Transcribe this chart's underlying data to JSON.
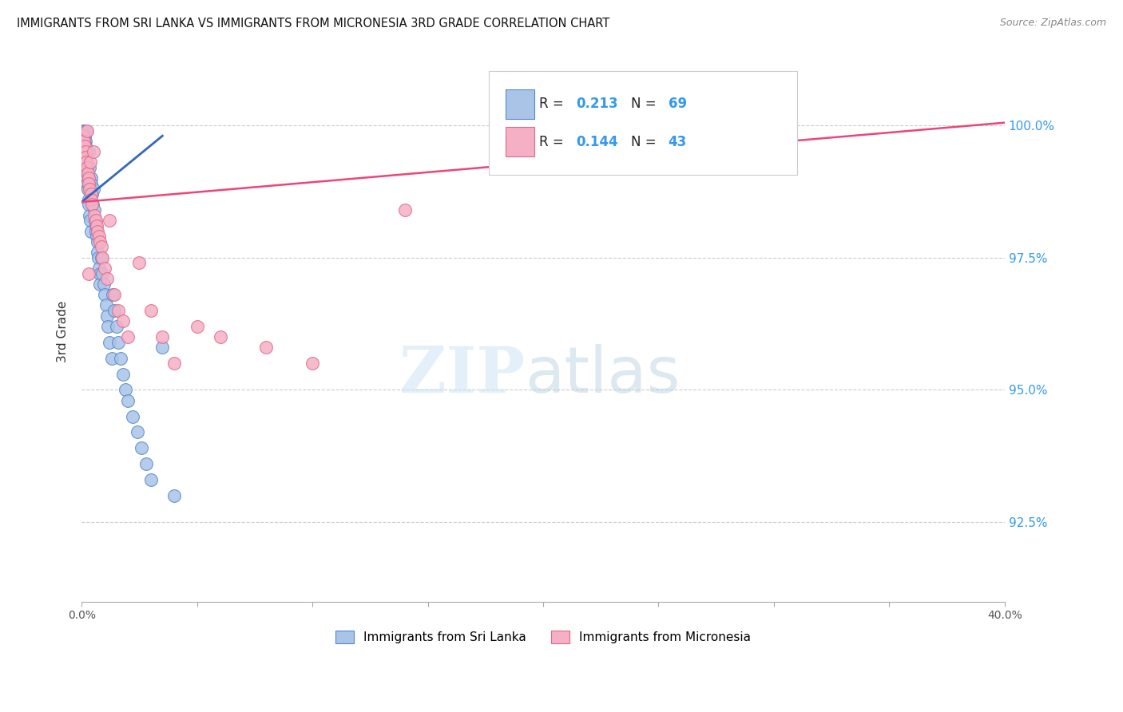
{
  "title": "IMMIGRANTS FROM SRI LANKA VS IMMIGRANTS FROM MICRONESIA 3RD GRADE CORRELATION CHART",
  "source": "Source: ZipAtlas.com",
  "ylabel": "3rd Grade",
  "yticks": [
    92.5,
    95.0,
    97.5,
    100.0
  ],
  "ytick_labels": [
    "92.5%",
    "95.0%",
    "97.5%",
    "100.0%"
  ],
  "xlim": [
    0.0,
    40.0
  ],
  "ylim": [
    91.0,
    101.2
  ],
  "sri_lanka_color": "#aac4e8",
  "micronesia_color": "#f5b0c5",
  "sri_lanka_edge": "#5588cc",
  "micronesia_edge": "#e06888",
  "trend_sri_lanka_color": "#3366bb",
  "trend_micronesia_color": "#ee4477",
  "R_sri_lanka": "0.213",
  "N_sri_lanka": "69",
  "R_micronesia": "0.144",
  "N_micronesia": "43",
  "watermark_zip": "ZIP",
  "watermark_atlas": "atlas",
  "marker_size": 130,
  "sl_legend": "Immigrants from Sri Lanka",
  "mc_legend": "Immigrants from Micronesia",
  "xtick_labels": [
    "0.0%",
    "",
    "",
    "",
    "",
    "",
    "",
    "",
    "",
    "40.0%"
  ],
  "sri_lanka_x": [
    0.05,
    0.07,
    0.08,
    0.09,
    0.1,
    0.1,
    0.11,
    0.12,
    0.13,
    0.14,
    0.15,
    0.15,
    0.16,
    0.17,
    0.18,
    0.2,
    0.2,
    0.22,
    0.23,
    0.25,
    0.25,
    0.27,
    0.3,
    0.3,
    0.32,
    0.35,
    0.35,
    0.37,
    0.4,
    0.4,
    0.42,
    0.45,
    0.48,
    0.5,
    0.55,
    0.58,
    0.6,
    0.62,
    0.65,
    0.68,
    0.7,
    0.72,
    0.75,
    0.78,
    0.8,
    0.85,
    0.9,
    0.95,
    1.0,
    1.05,
    1.1,
    1.15,
    1.2,
    1.3,
    1.35,
    1.4,
    1.5,
    1.6,
    1.7,
    1.8,
    1.9,
    2.0,
    2.2,
    2.4,
    2.6,
    2.8,
    3.0,
    3.5,
    4.0
  ],
  "sri_lanka_y": [
    99.9,
    99.9,
    99.9,
    99.9,
    99.9,
    99.8,
    99.8,
    99.8,
    99.8,
    99.7,
    99.7,
    99.6,
    99.5,
    99.5,
    99.4,
    99.9,
    99.3,
    99.2,
    99.1,
    99.0,
    98.9,
    98.8,
    99.5,
    98.6,
    98.5,
    99.2,
    98.3,
    98.2,
    99.0,
    98.0,
    98.9,
    98.7,
    98.5,
    98.8,
    98.4,
    98.2,
    98.1,
    98.0,
    97.9,
    97.8,
    97.6,
    97.5,
    97.3,
    97.2,
    97.0,
    97.5,
    97.2,
    97.0,
    96.8,
    96.6,
    96.4,
    96.2,
    95.9,
    95.6,
    96.8,
    96.5,
    96.2,
    95.9,
    95.6,
    95.3,
    95.0,
    94.8,
    94.5,
    94.2,
    93.9,
    93.6,
    93.3,
    95.8,
    93.0
  ],
  "micronesia_x": [
    0.05,
    0.08,
    0.1,
    0.12,
    0.15,
    0.18,
    0.2,
    0.22,
    0.25,
    0.28,
    0.3,
    0.32,
    0.35,
    0.38,
    0.4,
    0.42,
    0.45,
    0.5,
    0.55,
    0.6,
    0.65,
    0.7,
    0.75,
    0.8,
    0.85,
    0.9,
    1.0,
    1.1,
    1.2,
    1.4,
    1.6,
    1.8,
    2.0,
    2.5,
    3.0,
    3.5,
    4.0,
    5.0,
    6.0,
    8.0,
    10.0,
    14.0,
    0.3
  ],
  "micronesia_y": [
    99.8,
    99.7,
    99.7,
    99.6,
    99.5,
    99.4,
    99.3,
    99.9,
    99.2,
    99.1,
    99.0,
    98.9,
    98.8,
    99.3,
    98.7,
    98.6,
    98.5,
    99.5,
    98.3,
    98.2,
    98.1,
    98.0,
    97.9,
    97.8,
    97.7,
    97.5,
    97.3,
    97.1,
    98.2,
    96.8,
    96.5,
    96.3,
    96.0,
    97.4,
    96.5,
    96.0,
    95.5,
    96.2,
    96.0,
    95.8,
    95.5,
    98.4,
    97.2
  ],
  "trend_sl_x0": 0.0,
  "trend_sl_x1": 3.5,
  "trend_sl_y0": 98.55,
  "trend_sl_y1": 99.8,
  "trend_mc_x0": 0.0,
  "trend_mc_x1": 40.0,
  "trend_mc_y0": 98.55,
  "trend_mc_y1": 100.05
}
